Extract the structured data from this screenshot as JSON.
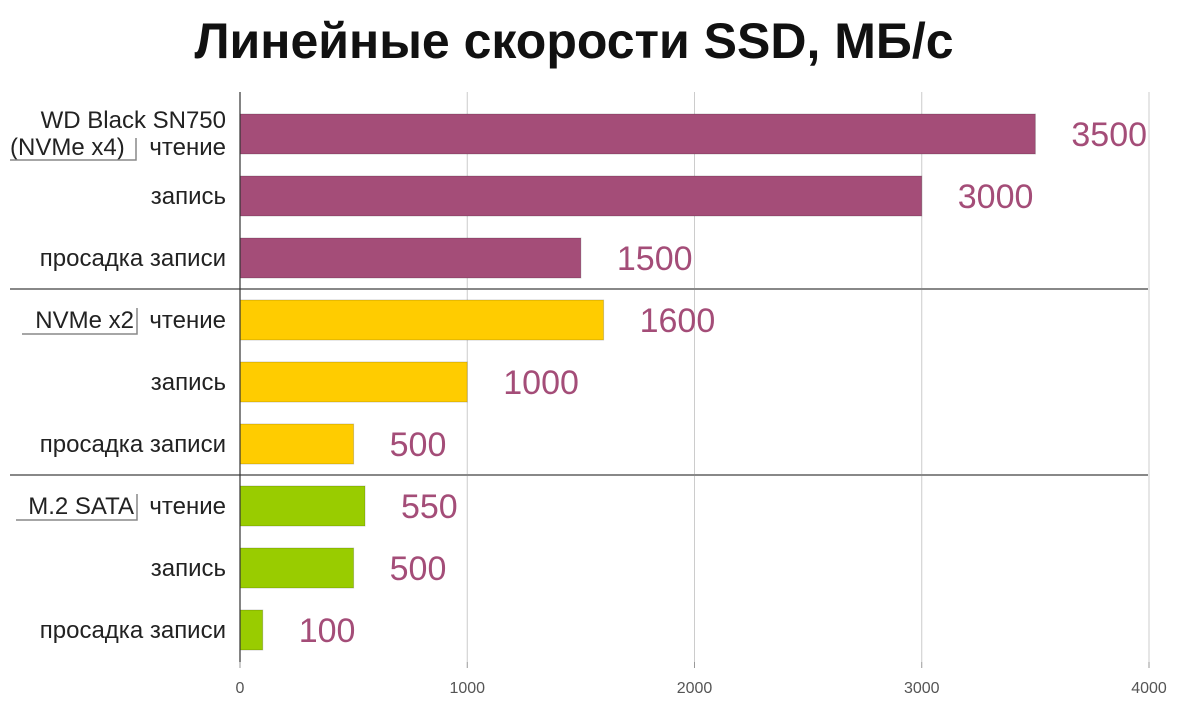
{
  "chart_data": {
    "type": "bar",
    "orientation": "horizontal",
    "title": "Линейные скорости SSD, МБ/с",
    "xlim": [
      0,
      4000
    ],
    "x_ticks": [
      0,
      1000,
      2000,
      3000,
      4000
    ],
    "grid": true,
    "groups": [
      {
        "label_lines": [
          "WD Black SN750",
          "(NVMe x4)"
        ],
        "color": "#a44d78",
        "bars": [
          {
            "label": "чтение",
            "value": 3500
          },
          {
            "label": "запись",
            "value": 3000
          },
          {
            "label": "просадка записи",
            "value": 1500
          }
        ]
      },
      {
        "label_lines": [
          "NVMe x2"
        ],
        "color": "#ffcc00",
        "bars": [
          {
            "label": "чтение",
            "value": 1600
          },
          {
            "label": "запись",
            "value": 1000
          },
          {
            "label": "просадка записи",
            "value": 500
          }
        ]
      },
      {
        "label_lines": [
          "M.2 SATA"
        ],
        "color": "#99cc00",
        "bars": [
          {
            "label": "чтение",
            "value": 550
          },
          {
            "label": "запись",
            "value": 500
          },
          {
            "label": "просадка записи",
            "value": 100
          }
        ]
      }
    ],
    "value_label_color": "#a44d78"
  }
}
